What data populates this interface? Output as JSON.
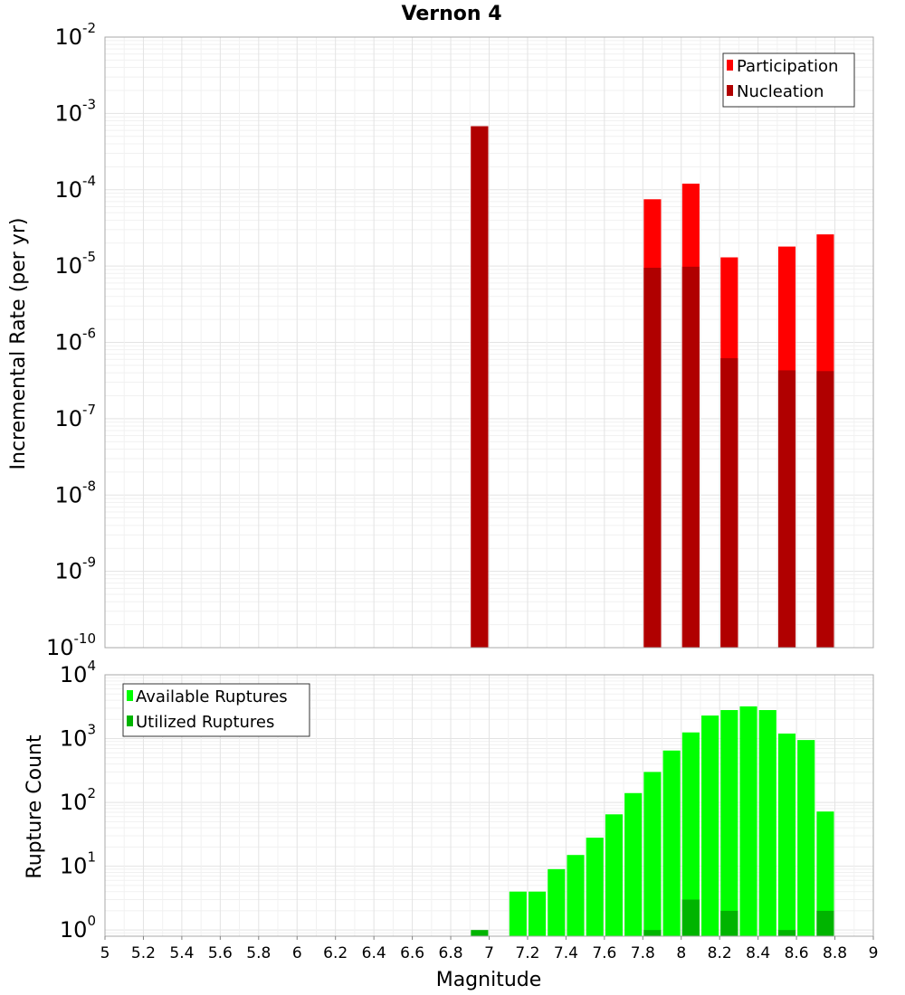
{
  "chart_data": [
    {
      "type": "bar",
      "title": "Vernon 4",
      "ylabel": "Incremental Rate (per yr)",
      "xlabel": "",
      "y_scale": "log",
      "ylim": [
        1e-10,
        0.01
      ],
      "xlim": [
        5,
        9
      ],
      "grid": true,
      "legend_position": "top-right",
      "y_tick_exponents": [
        "-10",
        "-9",
        "-8",
        "-7",
        "-6",
        "-5",
        "-4",
        "-3",
        "-2"
      ],
      "series": [
        {
          "name": "Participation",
          "color": "#ff0000",
          "x": [
            6.95,
            7.85,
            8.05,
            8.25,
            8.55,
            8.75
          ],
          "values": [
            0.00068,
            7.5e-05,
            0.00012,
            1.3e-05,
            1.8e-05,
            2.6e-05
          ]
        },
        {
          "name": "Nucleation",
          "color": "#b00000",
          "x": [
            6.95,
            7.85,
            8.05,
            8.25,
            8.55,
            8.75
          ],
          "values": [
            0.00068,
            9.5e-06,
            9.8e-06,
            6.2e-07,
            4.3e-07,
            4.2e-07
          ]
        }
      ]
    },
    {
      "type": "bar",
      "title": "",
      "ylabel": "Rupture Count",
      "xlabel": "Magnitude",
      "y_scale": "log",
      "ylim": [
        0.8,
        10000
      ],
      "xlim": [
        5,
        9
      ],
      "grid": true,
      "legend_position": "top-left",
      "y_tick_exponents": [
        "0",
        "1",
        "2",
        "3",
        "4"
      ],
      "x_ticks": [
        "5",
        "5.2",
        "5.4",
        "5.6",
        "5.8",
        "6",
        "6.2",
        "6.4",
        "6.6",
        "6.8",
        "7",
        "7.2",
        "7.4",
        "7.6",
        "7.8",
        "8",
        "8.2",
        "8.4",
        "8.6",
        "8.8",
        "9"
      ],
      "series": [
        {
          "name": "Available Ruptures",
          "color": "#00ff00",
          "x": [
            7.15,
            7.25,
            7.35,
            7.45,
            7.55,
            7.65,
            7.75,
            7.85,
            7.95,
            8.05,
            8.15,
            8.25,
            8.35,
            8.45,
            8.55,
            8.65,
            8.75
          ],
          "values": [
            4,
            4,
            9,
            15,
            28,
            65,
            140,
            300,
            650,
            1250,
            2300,
            2800,
            3200,
            2800,
            1200,
            950,
            72
          ]
        },
        {
          "name": "Utilized Ruptures",
          "color": "#00b400",
          "x": [
            6.95,
            7.85,
            8.05,
            8.25,
            8.55,
            8.75
          ],
          "values": [
            1,
            1,
            3,
            2,
            1,
            2
          ]
        }
      ]
    }
  ]
}
